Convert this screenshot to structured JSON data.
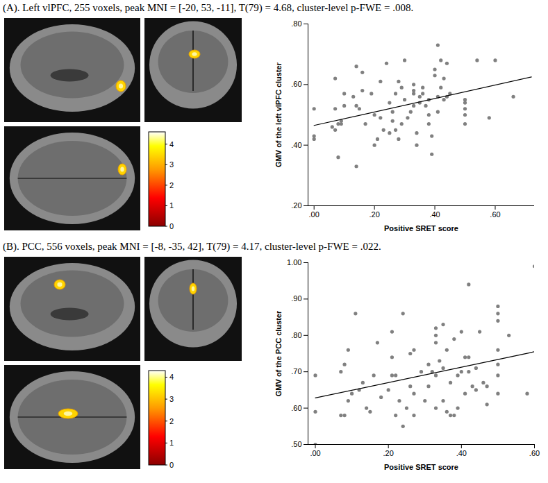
{
  "chart_data": [
    {
      "type": "scatter",
      "title": "(A). Left vlPFC, 255 voxels, peak MNI = [-20, 53, -11], T(79) = 4.68, cluster-level p-FWE = .008.",
      "x_label": "Positive SRET score",
      "y_label": "GMV of the left vlPFC cluster",
      "xlim": [
        -0.02,
        0.73
      ],
      "ylim": [
        0.2,
        0.8
      ],
      "xticks": [
        {
          "value": 0,
          "label": ".00"
        },
        {
          "value": 0.2,
          "label": ".20"
        },
        {
          "value": 0.4,
          "label": ".40"
        },
        {
          "value": 0.6,
          "label": ".60"
        }
      ],
      "yticks": [
        {
          "value": 0.2,
          "label": ".20"
        },
        {
          "value": 0.4,
          "label": ".40"
        },
        {
          "value": 0.6,
          "label": ".60"
        },
        {
          "value": 0.8,
          "label": ".80"
        }
      ],
      "color": "#808080",
      "grid": false,
      "x": [
        0.0,
        0.0,
        0.0,
        0.06,
        0.07,
        0.07,
        0.07,
        0.08,
        0.08,
        0.09,
        0.09,
        0.1,
        0.1,
        0.13,
        0.14,
        0.14,
        0.14,
        0.15,
        0.16,
        0.16,
        0.17,
        0.19,
        0.2,
        0.2,
        0.21,
        0.22,
        0.22,
        0.23,
        0.24,
        0.25,
        0.25,
        0.26,
        0.26,
        0.27,
        0.27,
        0.28,
        0.28,
        0.29,
        0.29,
        0.3,
        0.3,
        0.31,
        0.32,
        0.33,
        0.33,
        0.33,
        0.33,
        0.34,
        0.34,
        0.35,
        0.35,
        0.36,
        0.36,
        0.37,
        0.38,
        0.38,
        0.38,
        0.39,
        0.39,
        0.4,
        0.4,
        0.41,
        0.41,
        0.41,
        0.42,
        0.42,
        0.43,
        0.43,
        0.44,
        0.44,
        0.45,
        0.5,
        0.5,
        0.5,
        0.5,
        0.5,
        0.54,
        0.58,
        0.6,
        0.66
      ],
      "y": [
        0.43,
        0.42,
        0.52,
        0.46,
        0.45,
        0.52,
        0.62,
        0.36,
        0.47,
        0.47,
        0.48,
        0.57,
        0.53,
        0.56,
        0.33,
        0.53,
        0.66,
        0.52,
        0.58,
        0.64,
        0.47,
        0.57,
        0.4,
        0.5,
        0.42,
        0.49,
        0.61,
        0.45,
        0.67,
        0.44,
        0.54,
        0.48,
        0.51,
        0.57,
        0.45,
        0.61,
        0.42,
        0.59,
        0.47,
        0.68,
        0.55,
        0.49,
        0.51,
        0.57,
        0.58,
        0.6,
        0.53,
        0.4,
        0.44,
        0.56,
        0.54,
        0.59,
        0.57,
        0.53,
        0.55,
        0.5,
        0.47,
        0.37,
        0.43,
        0.63,
        0.65,
        0.73,
        0.56,
        0.51,
        0.68,
        0.59,
        0.62,
        0.55,
        0.67,
        0.56,
        0.57,
        0.55,
        0.52,
        0.54,
        0.5,
        0.47,
        0.68,
        0.49,
        0.68,
        0.56
      ],
      "trend_line": {
        "x": [
          0,
          0.72
        ],
        "y": [
          0.465,
          0.625
        ]
      },
      "colorbar": {
        "range": [
          0,
          4.6
        ],
        "ticks": [
          0,
          1,
          2,
          3,
          4
        ]
      }
    },
    {
      "type": "scatter",
      "title": "(B). PCC, 556 voxels, peak MNI = [-8, -35, 42], T(79) = 4.17, cluster-level p-FWE = .022.",
      "x_label": "Positive SRET score",
      "y_label": "GMV of the PCC cluster",
      "xlim": [
        -0.02,
        0.6
      ],
      "ylim": [
        0.5,
        1.0
      ],
      "xticks": [
        {
          "value": 0,
          "label": ".00"
        },
        {
          "value": 0.2,
          "label": ".20"
        },
        {
          "value": 0.4,
          "label": ".40"
        },
        {
          "value": 0.6,
          "label": ".60"
        }
      ],
      "yticks": [
        {
          "value": 0.5,
          "label": ".50"
        },
        {
          "value": 0.6,
          "label": ".60"
        },
        {
          "value": 0.7,
          "label": ".70"
        },
        {
          "value": 0.8,
          "label": ".80"
        },
        {
          "value": 0.9,
          "label": ".90"
        },
        {
          "value": 1.0,
          "label": "1.00"
        }
      ],
      "color": "#808080",
      "grid": false,
      "x": [
        0.0,
        0.0,
        0.0,
        0.07,
        0.07,
        0.08,
        0.08,
        0.09,
        0.09,
        0.1,
        0.11,
        0.12,
        0.13,
        0.14,
        0.15,
        0.16,
        0.17,
        0.18,
        0.2,
        0.21,
        0.21,
        0.21,
        0.22,
        0.22,
        0.23,
        0.24,
        0.24,
        0.25,
        0.26,
        0.26,
        0.27,
        0.27,
        0.27,
        0.29,
        0.3,
        0.31,
        0.31,
        0.32,
        0.33,
        0.33,
        0.33,
        0.33,
        0.33,
        0.34,
        0.35,
        0.35,
        0.35,
        0.36,
        0.36,
        0.37,
        0.37,
        0.38,
        0.38,
        0.39,
        0.39,
        0.4,
        0.4,
        0.41,
        0.41,
        0.42,
        0.42,
        0.42,
        0.43,
        0.44,
        0.44,
        0.45,
        0.46,
        0.47,
        0.47,
        0.5,
        0.5,
        0.5,
        0.5,
        0.5,
        0.5,
        0.5,
        0.53,
        0.58,
        0.6
      ],
      "y": [
        0.69,
        0.59,
        0.5,
        0.58,
        0.7,
        0.72,
        0.58,
        0.76,
        0.62,
        0.64,
        0.86,
        0.65,
        0.67,
        0.6,
        0.59,
        0.69,
        0.78,
        0.63,
        0.65,
        0.81,
        0.74,
        0.69,
        0.58,
        0.69,
        0.62,
        0.86,
        0.55,
        0.6,
        0.66,
        0.75,
        0.76,
        0.64,
        0.58,
        0.7,
        0.62,
        0.72,
        0.66,
        0.7,
        0.82,
        0.8,
        0.78,
        0.69,
        0.6,
        0.73,
        0.83,
        0.71,
        0.62,
        0.59,
        0.76,
        0.58,
        0.67,
        0.58,
        0.79,
        0.69,
        0.6,
        0.7,
        0.81,
        0.74,
        0.64,
        0.94,
        0.74,
        0.7,
        0.66,
        0.71,
        0.65,
        0.81,
        0.67,
        0.61,
        0.66,
        0.88,
        0.86,
        0.84,
        0.76,
        0.72,
        0.69,
        0.64,
        0.8,
        0.64,
        0.99
      ],
      "trend_line": {
        "x": [
          0,
          0.6
        ],
        "y": [
          0.628,
          0.755
        ]
      },
      "colorbar": {
        "range": [
          0,
          4.3
        ],
        "ticks": [
          0,
          1,
          2,
          3,
          4
        ]
      }
    }
  ]
}
